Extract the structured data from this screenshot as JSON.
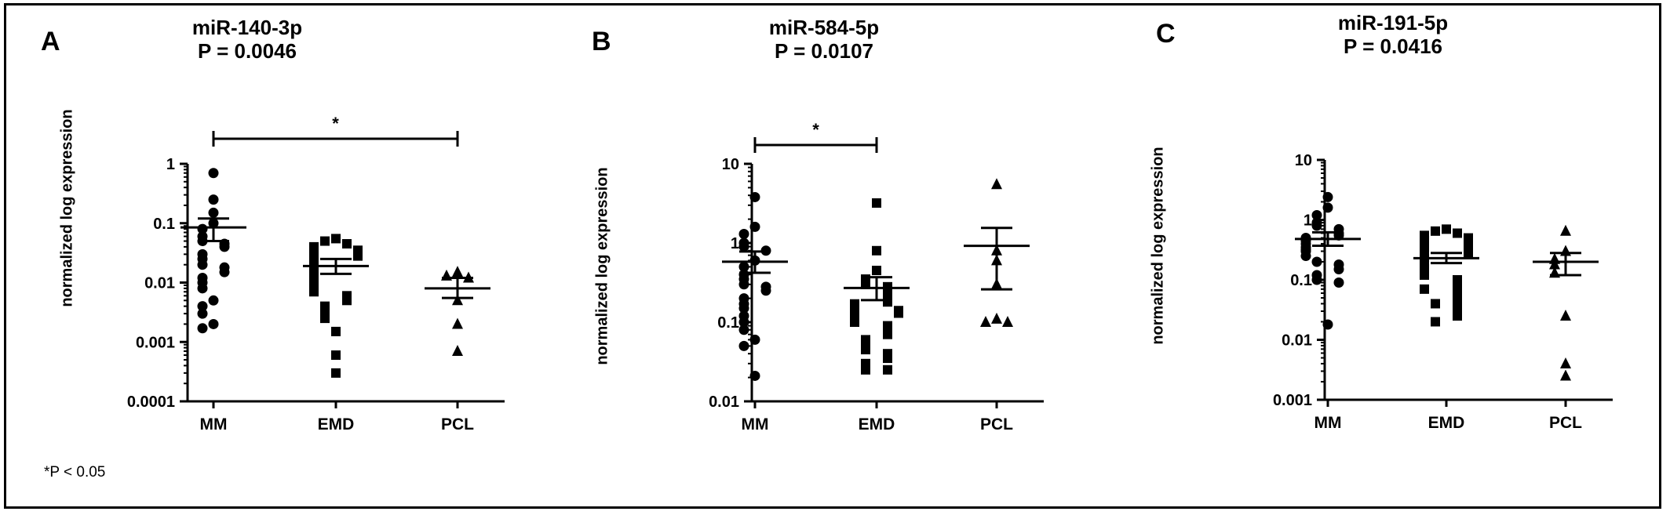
{
  "footnote": "*P < 0.05",
  "chart_data": [
    {
      "type": "scatter",
      "panel": "A",
      "title_line1": "miR-140-3p",
      "title_line2": "P = 0.0046",
      "ylabel": "normalized log expression",
      "yscale": "log",
      "ylim": [
        0.0001,
        1
      ],
      "yticks": [
        "1",
        "0.1",
        "0.01",
        "0.001",
        "0.0001"
      ],
      "categories": [
        "MM",
        "EMD",
        "PCL"
      ],
      "significance": {
        "from": "MM",
        "to": "PCL",
        "label": "*"
      },
      "groups": [
        {
          "name": "MM",
          "marker": "circle",
          "mean": 0.085,
          "sem_low": 0.05,
          "sem_high": 0.12,
          "values": [
            0.7,
            0.25,
            0.15,
            0.1,
            0.08,
            0.06,
            0.05,
            0.045,
            0.04,
            0.03,
            0.025,
            0.02,
            0.018,
            0.015,
            0.012,
            0.01,
            0.008,
            0.005,
            0.004,
            0.003,
            0.002,
            0.0017
          ]
        },
        {
          "name": "EMD",
          "marker": "square",
          "mean": 0.019,
          "sem_low": 0.014,
          "sem_high": 0.025,
          "values": [
            0.055,
            0.05,
            0.045,
            0.04,
            0.038,
            0.035,
            0.03,
            0.028,
            0.025,
            0.022,
            0.02,
            0.018,
            0.016,
            0.015,
            0.013,
            0.012,
            0.011,
            0.01,
            0.009,
            0.008,
            0.007,
            0.006,
            0.005,
            0.004,
            0.003,
            0.0025,
            0.0015,
            0.0006,
            0.0003
          ]
        },
        {
          "name": "PCL",
          "marker": "triangle",
          "mean": 0.008,
          "sem_low": 0.0055,
          "sem_high": 0.012,
          "values": [
            0.015,
            0.013,
            0.012,
            0.005,
            0.002,
            0.0007
          ]
        }
      ]
    },
    {
      "type": "scatter",
      "panel": "B",
      "title_line1": "miR-584-5p",
      "title_line2": "P = 0.0107",
      "ylabel": "normalized log expression",
      "yscale": "log",
      "ylim": [
        0.01,
        10
      ],
      "yticks": [
        "10",
        "1",
        "0.1",
        "0.01"
      ],
      "categories": [
        "MM",
        "EMD",
        "PCL"
      ],
      "significance": {
        "from": "MM",
        "to": "EMD",
        "label": "*"
      },
      "groups": [
        {
          "name": "MM",
          "marker": "circle",
          "mean": 0.58,
          "sem_low": 0.42,
          "sem_high": 0.78,
          "values": [
            3.8,
            1.6,
            1.3,
            1.0,
            0.9,
            0.8,
            0.6,
            0.5,
            0.4,
            0.35,
            0.3,
            0.28,
            0.25,
            0.2,
            0.17,
            0.15,
            0.12,
            0.1,
            0.08,
            0.06,
            0.05,
            0.021
          ]
        },
        {
          "name": "EMD",
          "marker": "square",
          "mean": 0.27,
          "sem_low": 0.19,
          "sem_high": 0.37,
          "values": [
            3.2,
            0.8,
            0.45,
            0.35,
            0.3,
            0.28,
            0.25,
            0.22,
            0.2,
            0.18,
            0.17,
            0.16,
            0.15,
            0.14,
            0.13,
            0.12,
            0.11,
            0.1,
            0.09,
            0.08,
            0.07,
            0.06,
            0.05,
            0.045,
            0.04,
            0.035,
            0.03,
            0.025,
            0.025
          ]
        },
        {
          "name": "PCL",
          "marker": "triangle",
          "mean": 0.92,
          "sem_low": 0.26,
          "sem_high": 1.55,
          "values": [
            5.5,
            0.8,
            0.6,
            0.3,
            0.11,
            0.1,
            0.1
          ]
        }
      ]
    },
    {
      "type": "scatter",
      "panel": "C",
      "title_line1": "miR-191-5p",
      "title_line2": "P = 0.0416",
      "ylabel": "normalized log expression",
      "yscale": "log",
      "ylim": [
        0.001,
        10
      ],
      "yticks": [
        "10",
        "1",
        "0.1",
        "0.01",
        "0.001"
      ],
      "categories": [
        "MM",
        "EMD",
        "PCL"
      ],
      "groups": [
        {
          "name": "MM",
          "marker": "circle",
          "mean": 0.48,
          "sem_low": 0.37,
          "sem_high": 0.62,
          "values": [
            2.4,
            1.6,
            1.2,
            0.9,
            0.8,
            0.7,
            0.6,
            0.55,
            0.5,
            0.45,
            0.4,
            0.35,
            0.32,
            0.3,
            0.25,
            0.2,
            0.18,
            0.15,
            0.12,
            0.1,
            0.09,
            0.018
          ]
        },
        {
          "name": "EMD",
          "marker": "square",
          "mean": 0.23,
          "sem_low": 0.19,
          "sem_high": 0.28,
          "values": [
            0.7,
            0.65,
            0.6,
            0.55,
            0.5,
            0.45,
            0.4,
            0.38,
            0.35,
            0.3,
            0.28,
            0.25,
            0.22,
            0.2,
            0.18,
            0.16,
            0.15,
            0.13,
            0.12,
            0.1,
            0.09,
            0.08,
            0.07,
            0.06,
            0.05,
            0.04,
            0.035,
            0.03,
            0.025,
            0.02
          ]
        },
        {
          "name": "PCL",
          "marker": "triangle",
          "mean": 0.2,
          "sem_low": 0.12,
          "sem_high": 0.28,
          "values": [
            0.65,
            0.3,
            0.22,
            0.18,
            0.13,
            0.025,
            0.004,
            0.0025
          ]
        }
      ]
    }
  ]
}
